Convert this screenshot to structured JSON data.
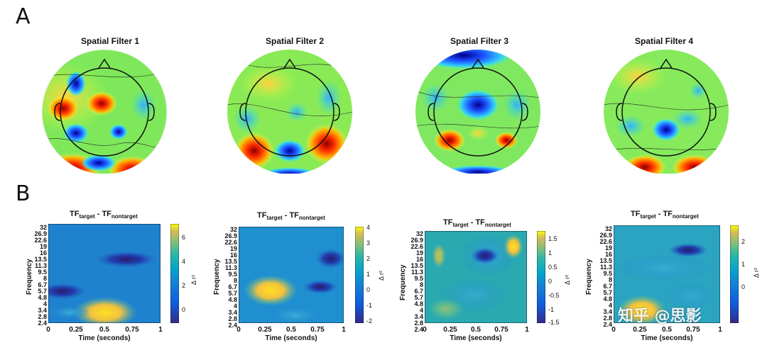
{
  "panels": {
    "a_label": "A",
    "b_label": "B"
  },
  "spatial_filters": [
    {
      "title": "Spatial Filter 1"
    },
    {
      "title": "Spatial Filter 2"
    },
    {
      "title": "Spatial Filter 3"
    },
    {
      "title": "Spatial Filter 4"
    }
  ],
  "tf_panels": {
    "title_main1": "TF",
    "title_sub1": "target",
    "title_mid": " - TF",
    "title_sub2": "nontarget",
    "ylabel": "Frequency",
    "xlabel": "Time (seconds)",
    "colorbar_label": "Δ r²",
    "freq_ticks": [
      "32",
      "26.9",
      "22.6",
      "19",
      "16",
      "13.5",
      "11.3",
      "9.5",
      "8",
      "6.7",
      "5.7",
      "4.8",
      "4",
      "3.4",
      "2.8",
      "2.4"
    ],
    "time_ticks": [
      "0",
      "0.25",
      "0.5",
      "0.75",
      "1"
    ]
  },
  "colorbars": [
    [
      "6",
      "4",
      "2",
      "0"
    ],
    [
      "4",
      "3",
      "2",
      "1",
      "0",
      "-1",
      "-2"
    ],
    [
      "1.5",
      "1",
      "0.5",
      "0",
      "-0.5",
      "-1",
      "-1.5"
    ],
    [
      "2",
      "1",
      "0"
    ]
  ],
  "watermark": "知乎 @思影"
}
